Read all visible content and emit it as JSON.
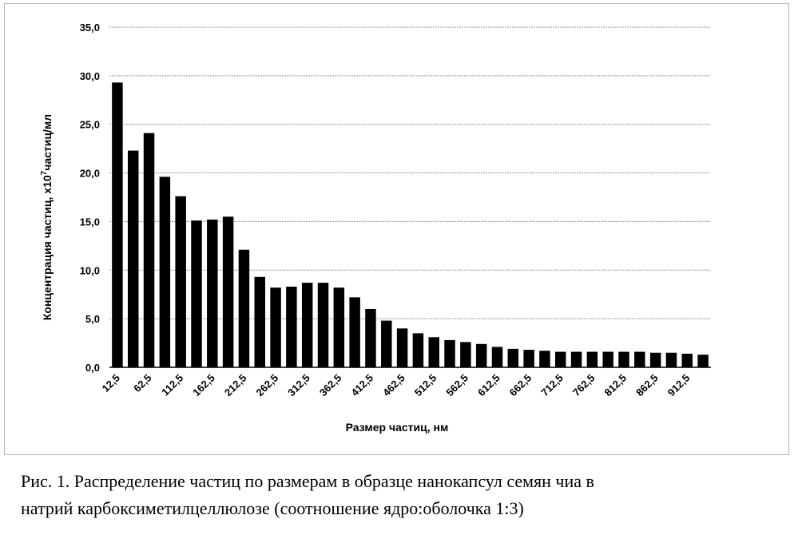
{
  "chart_data": {
    "type": "bar",
    "xlabel": "Размер частиц, нм",
    "ylabel_main": "Концентрация частиц, х10",
    "ylabel_sup": "7",
    "ylabel_tail": "частиц/мл",
    "ylim": [
      0,
      35
    ],
    "yticks": [
      "0,0",
      "5,0",
      "10,0",
      "15,0",
      "20,0",
      "25,0",
      "30,0",
      "35,0"
    ],
    "grid": true,
    "categories": [
      "12,5",
      "37,5",
      "62,5",
      "87,5",
      "112,5",
      "137,5",
      "162,5",
      "187,5",
      "212,5",
      "237,5",
      "262,5",
      "287,5",
      "312,5",
      "337,5",
      "362,5",
      "387,5",
      "412,5",
      "437,5",
      "462,5",
      "487,5",
      "512,5",
      "537,5",
      "562,5",
      "587,5",
      "612,5",
      "637,5",
      "662,5",
      "687,5",
      "712,5",
      "737,5",
      "762,5",
      "787,5",
      "812,5",
      "837,5",
      "862,5",
      "887,5",
      "912,5",
      "937,5"
    ],
    "shown_tick_labels": [
      "12,5",
      "62,5",
      "112,5",
      "162,5",
      "212,5",
      "262,5",
      "312,5",
      "362,5",
      "412,5",
      "462,5",
      "512,5",
      "562,5",
      "612,5",
      "662,5",
      "712,5",
      "762,5",
      "812,5",
      "862,5",
      "912,5"
    ],
    "values": [
      29.3,
      22.3,
      24.1,
      19.6,
      17.6,
      15.1,
      15.2,
      15.5,
      12.1,
      9.3,
      8.2,
      8.3,
      8.7,
      8.7,
      8.2,
      7.2,
      6.0,
      4.8,
      4.0,
      3.5,
      3.1,
      2.8,
      2.6,
      2.4,
      2.1,
      1.9,
      1.8,
      1.7,
      1.6,
      1.6,
      1.6,
      1.6,
      1.6,
      1.6,
      1.5,
      1.5,
      1.4,
      1.3
    ]
  },
  "caption": {
    "line1": "Рис. 1. Распределение частиц по размерам в образце нанокапсул семян чиа в",
    "line2": "натрий карбоксиметилцеллюлозе (соотношение ядро:оболочка 1:3)"
  }
}
